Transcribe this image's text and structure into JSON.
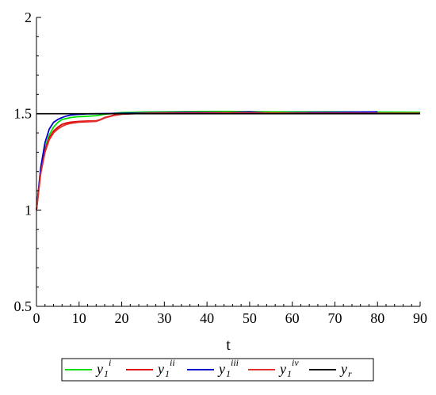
{
  "chart_data": {
    "type": "line",
    "xlabel": "t",
    "ylabel": "",
    "xlim": [
      0,
      90
    ],
    "ylim": [
      0.5,
      2
    ],
    "x_ticks": [
      "0",
      "10",
      "20",
      "30",
      "40",
      "50",
      "60",
      "70",
      "80",
      "90"
    ],
    "y_ticks": [
      "0.5",
      "1",
      "1.5",
      "2"
    ],
    "grid": false,
    "legend_position": "bottom",
    "series": [
      {
        "name": "y1 i",
        "label_base": "y",
        "label_sub": "1",
        "label_sup": "i",
        "color": "#00e000",
        "points": [
          [
            0,
            1.0
          ],
          [
            1,
            1.2
          ],
          [
            2,
            1.32
          ],
          [
            3,
            1.39
          ],
          [
            4,
            1.43
          ],
          [
            5,
            1.455
          ],
          [
            6,
            1.47
          ],
          [
            8,
            1.48
          ],
          [
            10,
            1.485
          ],
          [
            12,
            1.487
          ],
          [
            14,
            1.49
          ],
          [
            16,
            1.497
          ],
          [
            18,
            1.502
          ],
          [
            20,
            1.506
          ],
          [
            25,
            1.509
          ],
          [
            30,
            1.51
          ],
          [
            35,
            1.511
          ],
          [
            40,
            1.512
          ],
          [
            45,
            1.512
          ],
          [
            50,
            1.511
          ],
          [
            55,
            1.51
          ],
          [
            60,
            1.51
          ],
          [
            70,
            1.51
          ],
          [
            80,
            1.509
          ],
          [
            90,
            1.508
          ]
        ]
      },
      {
        "name": "y1 ii",
        "label_base": "y",
        "label_sub": "1",
        "label_sup": "ii",
        "color": "#e00000",
        "points": [
          [
            0,
            1.0
          ],
          [
            1,
            1.2
          ],
          [
            2,
            1.31
          ],
          [
            3,
            1.375
          ],
          [
            4,
            1.41
          ],
          [
            5,
            1.43
          ],
          [
            6,
            1.445
          ],
          [
            7,
            1.452
          ],
          [
            8,
            1.456
          ],
          [
            10,
            1.46
          ],
          [
            12,
            1.462
          ],
          [
            14,
            1.463
          ],
          [
            15,
            1.47
          ],
          [
            16,
            1.48
          ],
          [
            18,
            1.492
          ],
          [
            20,
            1.498
          ],
          [
            25,
            1.503
          ],
          [
            30,
            1.505
          ],
          [
            40,
            1.505
          ],
          [
            50,
            1.504
          ],
          [
            60,
            1.503
          ],
          [
            70,
            1.503
          ],
          [
            80,
            1.502
          ],
          [
            90,
            1.502
          ]
        ]
      },
      {
        "name": "y1 iii",
        "label_base": "y",
        "label_sub": "1",
        "label_sup": "iii",
        "color": "#0000d0",
        "points": [
          [
            0,
            1.0
          ],
          [
            1,
            1.22
          ],
          [
            2,
            1.35
          ],
          [
            3,
            1.42
          ],
          [
            4,
            1.455
          ],
          [
            5,
            1.47
          ],
          [
            6,
            1.48
          ],
          [
            7,
            1.488
          ],
          [
            8,
            1.493
          ],
          [
            10,
            1.497
          ],
          [
            12,
            1.499
          ],
          [
            15,
            1.5
          ],
          [
            20,
            1.502
          ],
          [
            25,
            1.504
          ],
          [
            30,
            1.506
          ],
          [
            35,
            1.508
          ],
          [
            40,
            1.507
          ],
          [
            45,
            1.506
          ],
          [
            50,
            1.51
          ],
          [
            55,
            1.503
          ],
          [
            60,
            1.505
          ],
          [
            65,
            1.507
          ],
          [
            70,
            1.508
          ],
          [
            75,
            1.509
          ],
          [
            80,
            1.51
          ]
        ]
      },
      {
        "name": "y1 iv",
        "label_base": "y",
        "label_sub": "1",
        "label_sup": "iv",
        "color": "#e03030",
        "points": [
          [
            0,
            1.0
          ],
          [
            1,
            1.19
          ],
          [
            2,
            1.3
          ],
          [
            3,
            1.365
          ],
          [
            4,
            1.4
          ],
          [
            5,
            1.42
          ],
          [
            6,
            1.435
          ],
          [
            7,
            1.444
          ],
          [
            8,
            1.45
          ],
          [
            10,
            1.456
          ],
          [
            12,
            1.458
          ],
          [
            14,
            1.46
          ],
          [
            15,
            1.468
          ],
          [
            16,
            1.478
          ],
          [
            18,
            1.49
          ],
          [
            20,
            1.497
          ],
          [
            25,
            1.502
          ],
          [
            30,
            1.504
          ],
          [
            40,
            1.505
          ],
          [
            50,
            1.505
          ],
          [
            60,
            1.503
          ],
          [
            70,
            1.503
          ],
          [
            80,
            1.502
          ],
          [
            90,
            1.502
          ]
        ]
      },
      {
        "name": "yr",
        "label_base": "y",
        "label_sub": "r",
        "label_sup": "",
        "color": "#000000",
        "points": [
          [
            0,
            1.5
          ],
          [
            90,
            1.5
          ]
        ]
      }
    ]
  }
}
